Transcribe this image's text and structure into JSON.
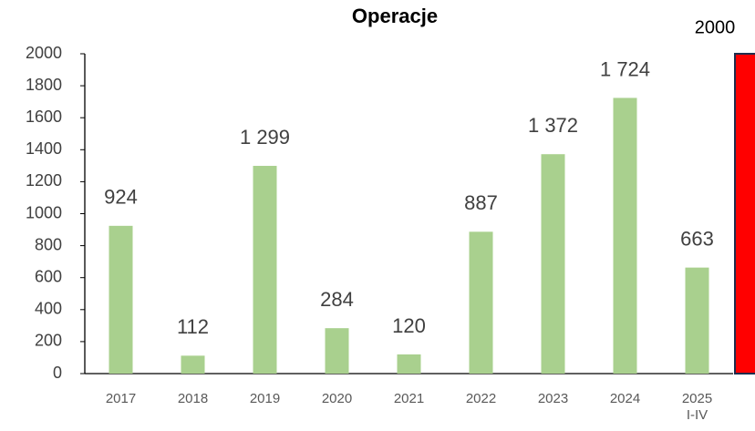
{
  "chart_data": {
    "type": "bar",
    "title": "Operacje",
    "categories": [
      "2017",
      "2018",
      "2019",
      "2020",
      "2021",
      "2022",
      "2023",
      "2024",
      "2025\nI-IV"
    ],
    "values": [
      924,
      112,
      1299,
      284,
      120,
      887,
      1372,
      1724,
      663
    ],
    "value_labels": [
      "924",
      "112",
      "1 299",
      "284",
      "120",
      "887",
      "1 372",
      "1 724",
      "663"
    ],
    "color": "#a9d08e",
    "target": {
      "value": 2000,
      "color": "#ff0000"
    },
    "ylim": [
      0,
      2000
    ],
    "yticks": [
      0,
      200,
      400,
      600,
      800,
      1000,
      1200,
      1400,
      1600,
      1800,
      2000
    ],
    "grid": false
  }
}
